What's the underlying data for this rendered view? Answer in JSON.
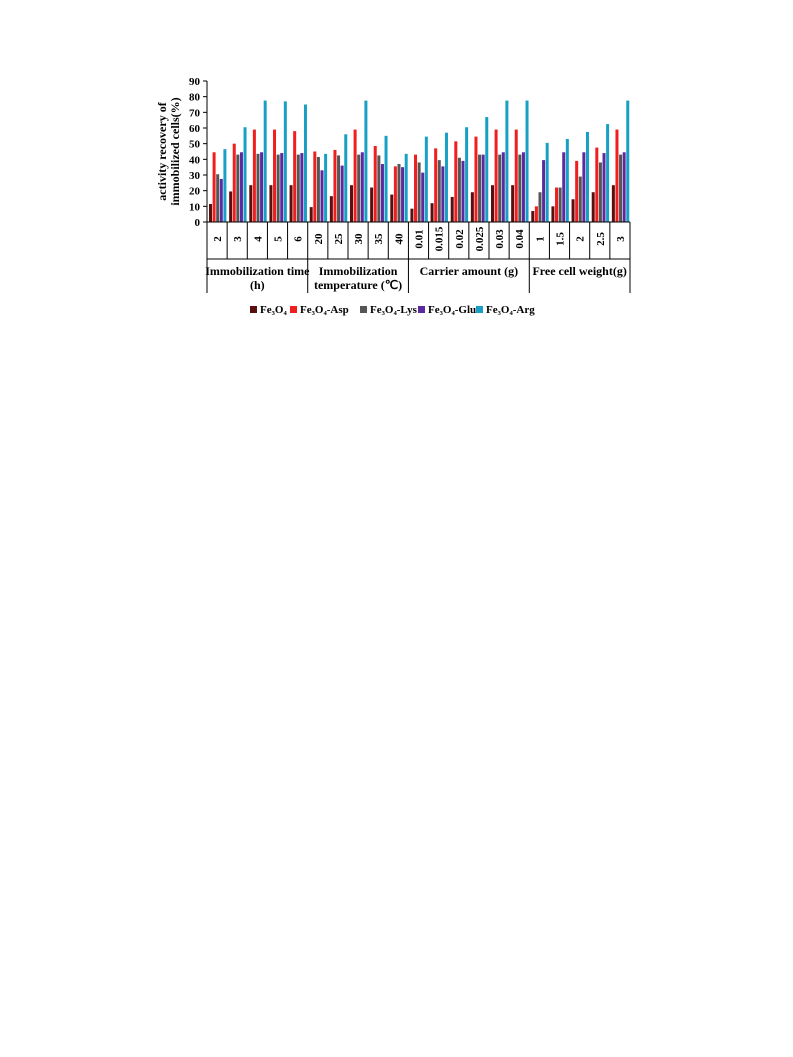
{
  "chart_data": {
    "type": "bar",
    "ylabel": [
      "activity recovery of",
      "immobilized cells(%)"
    ],
    "ylim": [
      0,
      90
    ],
    "yticks": [
      0,
      10,
      20,
      30,
      40,
      50,
      60,
      70,
      80,
      90
    ],
    "grid": false,
    "legend_position": "bottom",
    "groups": [
      {
        "name": [
          "Immobilization time",
          "(h)"
        ],
        "categories": [
          "2",
          "3",
          "4",
          "5",
          "6"
        ]
      },
      {
        "name": [
          "Immobilization",
          "temperature (℃)"
        ],
        "categories": [
          "20",
          "25",
          "30",
          "35",
          "40"
        ]
      },
      {
        "name": [
          "Carrier amount (g)"
        ],
        "categories": [
          "0.01",
          "0.015",
          "0.02",
          "0.025",
          "0.03",
          "0.04"
        ]
      },
      {
        "name": [
          "Free cell weight(g)"
        ],
        "categories": [
          "1",
          "1.5",
          "2",
          "2.5",
          "3"
        ]
      }
    ],
    "series": [
      {
        "name": "Fe₃O₄",
        "color": "#5a0f0f",
        "values": [
          11.5,
          19.5,
          23.5,
          23.5,
          23.5,
          9.5,
          16.5,
          23.5,
          22.0,
          17.5,
          8.5,
          12.0,
          16.0,
          19.0,
          23.5,
          23.5,
          7.0,
          10.0,
          14.5,
          19.0,
          23.5
        ]
      },
      {
        "name": "Fe₃O₄-Asp",
        "color": "#f01e1e",
        "values": [
          44.5,
          50.0,
          59.0,
          59.0,
          58.0,
          45.0,
          46.0,
          59.0,
          48.5,
          35.5,
          43.0,
          47.0,
          51.5,
          54.5,
          59.0,
          59.0,
          10.0,
          22.0,
          39.0,
          47.5,
          59.0
        ]
      },
      {
        "name": "Fe₃O₄-Lys",
        "color": "#555555",
        "values": [
          30.5,
          43.0,
          43.5,
          43.0,
          43.0,
          41.5,
          42.5,
          43.0,
          42.5,
          37.0,
          38.0,
          39.5,
          41.0,
          43.0,
          43.0,
          43.0,
          19.0,
          22.0,
          29.0,
          38.0,
          43.0
        ]
      },
      {
        "name": "Fe₃O₄-Glu",
        "color": "#5b2a9e",
        "values": [
          27.5,
          44.5,
          44.5,
          44.0,
          44.0,
          33.0,
          36.0,
          44.5,
          37.0,
          35.0,
          31.5,
          35.5,
          39.0,
          43.0,
          44.5,
          44.5,
          39.5,
          44.5,
          44.5,
          44.0,
          44.5
        ]
      },
      {
        "name": "Fe₃O₄-Arg",
        "color": "#18a0c4",
        "values": [
          46.5,
          60.5,
          77.5,
          77.0,
          75.0,
          43.5,
          56.0,
          77.5,
          55.0,
          43.5,
          54.5,
          57.0,
          60.5,
          67.0,
          77.5,
          77.5,
          50.5,
          53.0,
          57.5,
          62.5,
          77.5
        ]
      }
    ]
  }
}
